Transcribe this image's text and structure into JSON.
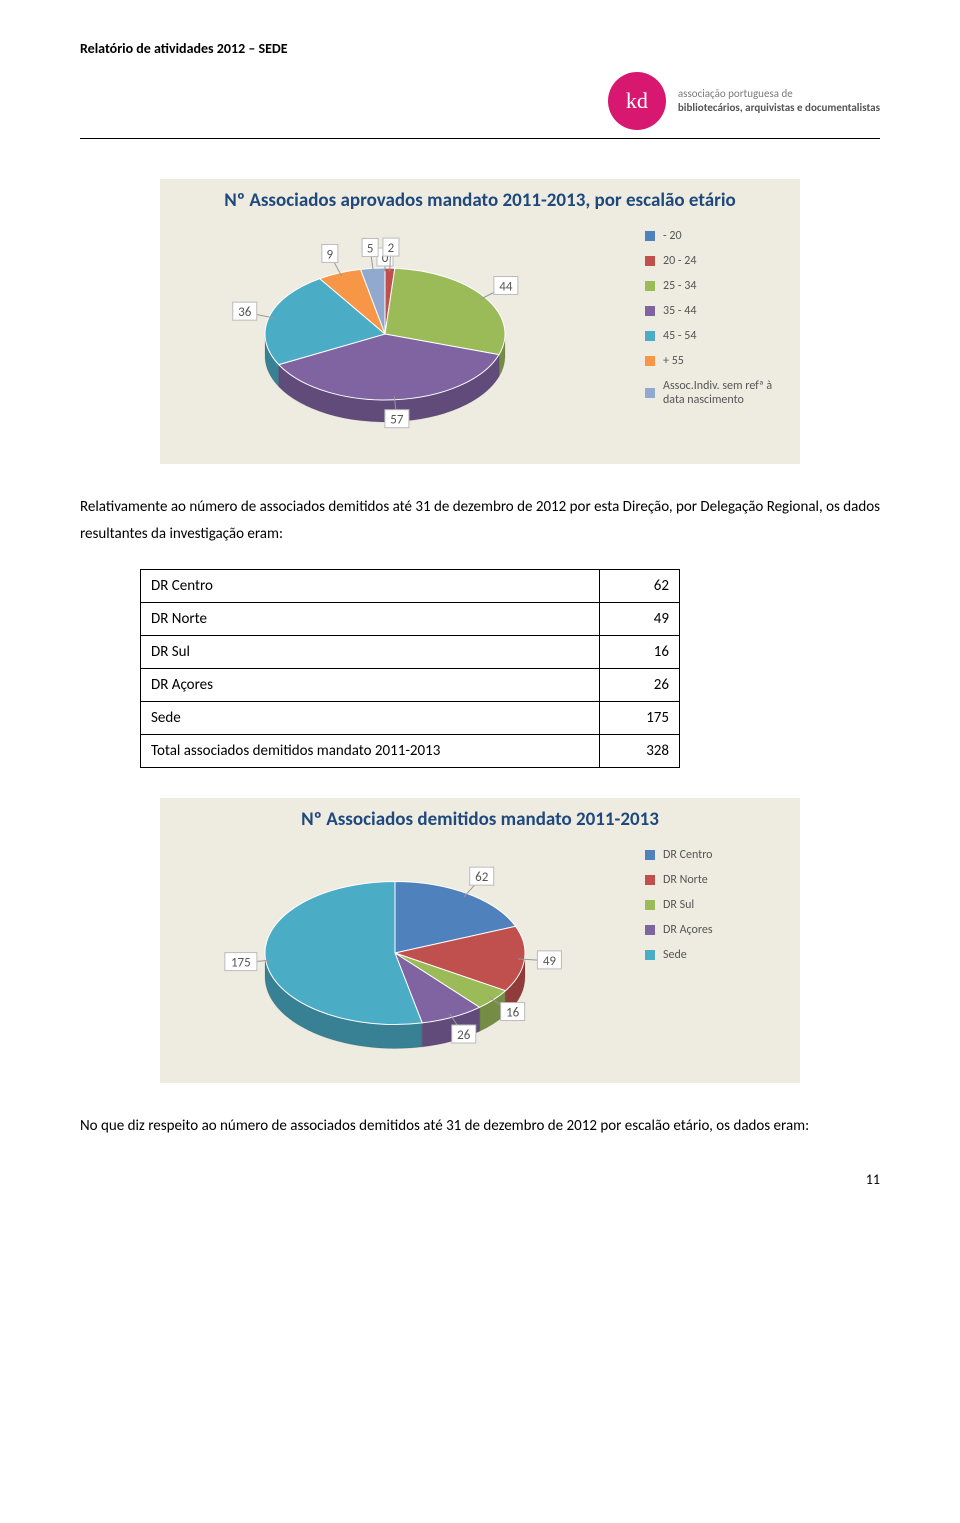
{
  "header": {
    "title": "Relatório de atividades 2012 – SEDE",
    "brand_line1": "associação portuguesa de",
    "brand_line2": "bibliotecários, arquivistas e documentalistas",
    "brand_color": "#d81870"
  },
  "chart1": {
    "title": "Nº Associados aprovados mandato 2011-2013, por escalão etário",
    "title_color": "#1f497d",
    "title_fontsize": 19,
    "background_color": "#eeece1",
    "legend": [
      {
        "label": "- 20",
        "color": "#4f81bd"
      },
      {
        "label": "20 - 24",
        "color": "#c0504d"
      },
      {
        "label": "25 - 34",
        "color": "#9bbb59"
      },
      {
        "label": "35 - 44",
        "color": "#8064a2"
      },
      {
        "label": "45 - 54",
        "color": "#4bacc6"
      },
      {
        "label": "+ 55",
        "color": "#f79646"
      },
      {
        "label": "Assoc.Indiv. sem refª à data nascimento",
        "color": "#92a9cf"
      }
    ],
    "slices": [
      {
        "label": "0",
        "value": 0,
        "color": "#4f81bd"
      },
      {
        "label": "2",
        "value": 2,
        "color": "#c0504d"
      },
      {
        "label": "44",
        "value": 44,
        "color": "#9bbb59"
      },
      {
        "label": "57",
        "value": 57,
        "color": "#8064a2"
      },
      {
        "label": "36",
        "value": 36,
        "color": "#4bacc6"
      },
      {
        "label": "9",
        "value": 9,
        "color": "#f79646"
      },
      {
        "label": "5",
        "value": 5,
        "color": "#92a9cf"
      }
    ]
  },
  "para1": "Relativamente ao número de associados demitidos até 31 de dezembro de 2012 por esta Direção, por Delegação Regional, os dados resultantes da investigação eram:",
  "table": {
    "rows": [
      {
        "label": "DR Centro",
        "value": "62"
      },
      {
        "label": "DR Norte",
        "value": "49"
      },
      {
        "label": "DR Sul",
        "value": "16"
      },
      {
        "label": "DR Açores",
        "value": "26"
      },
      {
        "label": "Sede",
        "value": "175"
      },
      {
        "label": "Total associados demitidos mandato 2011-2013",
        "value": "328"
      }
    ]
  },
  "chart2": {
    "title": "Nº Associados demitidos mandato 2011-2013",
    "title_color": "#1f497d",
    "title_fontsize": 19,
    "background_color": "#eeece1",
    "legend": [
      {
        "label": "DR Centro",
        "color": "#4f81bd"
      },
      {
        "label": "DR Norte",
        "color": "#c0504d"
      },
      {
        "label": "DR Sul",
        "color": "#9bbb59"
      },
      {
        "label": "DR Açores",
        "color": "#8064a2"
      },
      {
        "label": "Sede",
        "color": "#4bacc6"
      }
    ],
    "slices": [
      {
        "label": "62",
        "value": 62,
        "color": "#4f81bd"
      },
      {
        "label": "49",
        "value": 49,
        "color": "#c0504d"
      },
      {
        "label": "16",
        "value": 16,
        "color": "#9bbb59"
      },
      {
        "label": "26",
        "value": 26,
        "color": "#8064a2"
      },
      {
        "label": "175",
        "value": 175,
        "color": "#4bacc6"
      }
    ]
  },
  "para2": "No que diz respeito ao número de associados demitidos até 31 de dezembro de 2012 por escalão etário, os dados eram:",
  "page_number": "11"
}
